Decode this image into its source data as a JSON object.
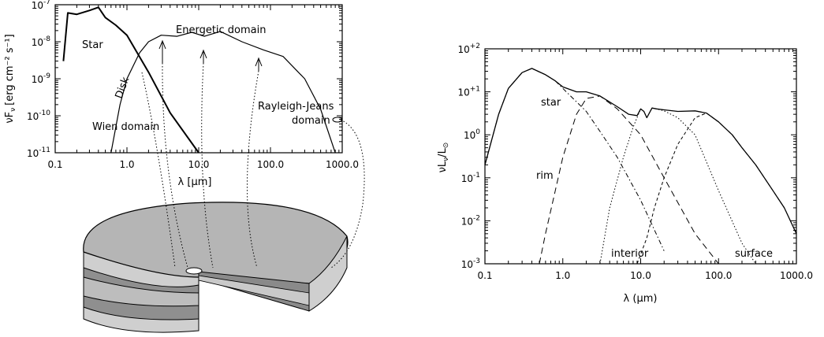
{
  "chart_data": [
    {
      "type": "line",
      "xlabel": "λ [μm]",
      "ylabel": "νF",
      "ylabel_sub": "ν",
      "ylabel_units": "[erg cm⁻² s⁻¹]",
      "xscale": "log",
      "yscale": "log",
      "xlim": [
        0.1,
        1000
      ],
      "ylim": [
        1e-11,
        1e-07
      ],
      "x_tick_labels": [
        "0.1",
        "1.0",
        "10.0",
        "100.0",
        "1000.0"
      ],
      "y_tick_labels": [
        {
          "base": "10",
          "exp": "-7"
        },
        {
          "base": "10",
          "exp": "-8"
        },
        {
          "base": "10",
          "exp": "-9"
        },
        {
          "base": "10",
          "exp": "-10"
        },
        {
          "base": "10",
          "exp": "-11"
        }
      ],
      "annotations": [
        "Star",
        "Disk",
        "Energetic domain",
        "Rayleigh-Jeans",
        "domain",
        "Wien domain"
      ],
      "series": [
        {
          "x": [
            0.13,
            0.15,
            0.2,
            0.3,
            0.4,
            0.5,
            0.7,
            1.0,
            2.0,
            4.0,
            10.0
          ],
          "y": [
            3e-09,
            6e-08,
            5.5e-08,
            7e-08,
            8.5e-08,
            4.5e-08,
            2.8e-08,
            1.5e-08,
            1.5e-09,
            1.2e-10,
            1e-11
          ]
        },
        {
          "x": [
            0.6,
            0.8,
            1.0,
            1.5,
            2.0,
            3.0,
            5.0,
            8.0,
            12.0,
            20.0,
            40.0,
            80.0,
            150.0,
            300.0,
            500.0,
            800.0
          ],
          "y": [
            1e-11,
            2e-10,
            1e-09,
            5e-09,
            1e-08,
            1.5e-08,
            1.4e-08,
            1.8e-08,
            1.4e-08,
            1.9e-08,
            1e-08,
            6e-09,
            4e-09,
            1e-09,
            1.5e-10,
            1e-11
          ]
        }
      ]
    },
    {
      "type": "line",
      "xlabel": "λ (μm)",
      "ylabel": "νL",
      "ylabel_sub": "ν",
      "ylabel_tail": "/L",
      "ylabel_sub2": "⊙",
      "xscale": "log",
      "yscale": "log",
      "xlim": [
        0.1,
        1000
      ],
      "ylim": [
        0.001,
        100
      ],
      "x_tick_labels": [
        "0.1",
        "1.0",
        "10.0",
        "100.0",
        "1000.0"
      ],
      "y_tick_labels": [
        {
          "base": "10",
          "exp": "+2"
        },
        {
          "base": "10",
          "exp": "+1"
        },
        {
          "base": "10",
          "exp": "0"
        },
        {
          "base": "10",
          "exp": "-1"
        },
        {
          "base": "10",
          "exp": "-2"
        },
        {
          "base": "10",
          "exp": "-3"
        }
      ],
      "annotations": [
        "star",
        "rim",
        "interior",
        "surface"
      ],
      "series": [
        {
          "x": [
            0.1,
            0.15,
            0.2,
            0.3,
            0.4,
            0.6,
            0.8,
            1.0,
            1.5,
            2.0,
            3.0,
            5.0,
            7.0,
            9.0,
            10.0,
            11.0,
            12.0,
            14.0,
            16.0,
            20.0,
            30.0,
            50.0,
            70.0,
            100.0,
            150.0,
            200.0,
            300.0,
            500.0,
            700.0,
            1000.0
          ],
          "y": [
            0.2,
            3,
            12,
            28,
            35,
            25,
            18,
            13,
            10,
            10,
            8,
            4.5,
            3,
            2.8,
            4,
            3.5,
            2.5,
            4.2,
            4,
            3.8,
            3.5,
            3.6,
            3.2,
            2,
            1,
            0.5,
            0.2,
            0.05,
            0.02,
            0.005
          ]
        },
        {
          "x": [
            0.1,
            0.15,
            0.2,
            0.3,
            0.4,
            0.6,
            0.8,
            1.0,
            2.0,
            3.0,
            5.0,
            10.0,
            20.0
          ],
          "y": [
            0.2,
            3,
            12,
            28,
            35,
            25,
            18,
            12,
            3.5,
            1.2,
            0.3,
            0.03,
            0.002
          ]
        },
        {
          "x": [
            0.5,
            0.6,
            0.8,
            1.0,
            1.5,
            2.0,
            3.0,
            5.0,
            10.0,
            20.0,
            50.0,
            100.0
          ],
          "y": [
            0.001,
            0.005,
            0.05,
            0.3,
            3,
            7,
            8,
            4,
            1,
            0.1,
            0.005,
            0.001
          ]
        },
        {
          "x": [
            3.0,
            4.0,
            6.0,
            8.0,
            10.0,
            11.0,
            12.0,
            14.0,
            16.0,
            20.0,
            30.0,
            50.0,
            100.0,
            200.0,
            300.0
          ],
          "y": [
            0.001,
            0.02,
            0.3,
            1.5,
            4,
            3.5,
            2.5,
            4.2,
            4,
            3.6,
            2.5,
            1,
            0.05,
            0.003,
            0.001
          ]
        },
        {
          "x": [
            9.0,
            12.0,
            15.0,
            20.0,
            30.0,
            50.0,
            70.0,
            100.0,
            150.0,
            200.0,
            300.0,
            500.0,
            700.0
          ],
          "y": [
            0.001,
            0.004,
            0.02,
            0.1,
            0.6,
            2.5,
            3.2,
            2,
            1,
            0.5,
            0.2,
            0.05,
            0.02
          ]
        }
      ]
    }
  ]
}
